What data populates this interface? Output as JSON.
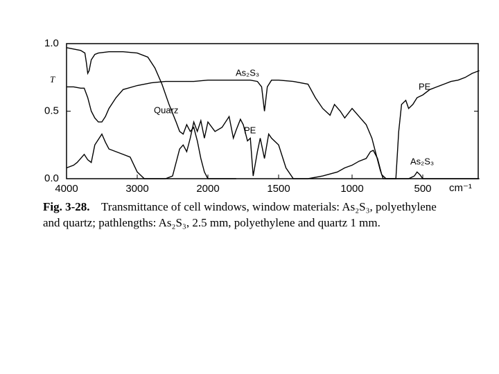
{
  "chart_data": {
    "type": "line",
    "ylabel": "T",
    "xlabel": "cm⁻¹",
    "caption_label": "Fig. 3-28.",
    "caption_line1": "Transmittance of cell windows, window materials: As₂S₃, polyethylene",
    "caption_line2": "and quartz; pathlengths: As₂S₃, 2.5 mm, polyethylene and quartz 1 mm.",
    "xlim": [
      4000,
      100
    ],
    "xticks": [
      4000,
      3000,
      2000,
      1500,
      1000,
      500
    ],
    "ylim": [
      0,
      1.0
    ],
    "yticks": [
      {
        "value": 0,
        "label": "0.0"
      },
      {
        "value": 0.5,
        "label": "0.5"
      },
      {
        "value": 1.0,
        "label": "1.0"
      }
    ],
    "series": [
      {
        "name": "As₂S₃",
        "color": "#000000",
        "x": [
          4000,
          3900,
          3800,
          3750,
          3700,
          3650,
          3600,
          3550,
          3500,
          3450,
          3400,
          3300,
          3200,
          3000,
          2800,
          2600,
          2400,
          2200,
          2000,
          1800,
          1700,
          1650,
          1620,
          1600,
          1580,
          1550,
          1500,
          1400,
          1300,
          1250,
          1200,
          1150,
          1120,
          1080,
          1050,
          1000,
          950,
          900,
          860,
          830,
          800,
          780,
          750,
          700,
          600,
          560,
          540,
          520,
          500,
          450,
          300,
          100
        ],
        "values": [
          0.68,
          0.68,
          0.67,
          0.67,
          0.6,
          0.5,
          0.45,
          0.42,
          0.42,
          0.46,
          0.52,
          0.6,
          0.66,
          0.69,
          0.71,
          0.72,
          0.72,
          0.72,
          0.73,
          0.73,
          0.73,
          0.72,
          0.68,
          0.5,
          0.68,
          0.73,
          0.73,
          0.72,
          0.7,
          0.6,
          0.52,
          0.47,
          0.55,
          0.5,
          0.45,
          0.52,
          0.46,
          0.4,
          0.3,
          0.18,
          0.06,
          0.0,
          0.0,
          0.0,
          0.0,
          0.02,
          0.05,
          0.03,
          0.0,
          0.0,
          0.0,
          0.0
        ]
      },
      {
        "name": "PE",
        "color": "#000000",
        "x": [
          4000,
          3900,
          3850,
          3800,
          3750,
          3700,
          3650,
          3600,
          3500,
          3450,
          3400,
          3300,
          3200,
          3100,
          3000,
          2900,
          2800,
          2600,
          2500,
          2400,
          2350,
          2300,
          2250,
          2200,
          2150,
          2100,
          2050,
          2000,
          1950,
          1900,
          1850,
          1820,
          1800,
          1770,
          1750,
          1720,
          1700,
          1680,
          1650,
          1630,
          1600,
          1570,
          1550,
          1500,
          1450,
          1400,
          1300,
          1200,
          1100,
          1050,
          1000,
          950,
          900,
          870,
          850,
          820,
          790,
          760,
          720,
          690,
          670,
          650,
          620,
          600,
          570,
          540,
          500,
          450,
          400,
          350,
          300,
          250,
          200,
          150,
          100
        ],
        "values": [
          0.08,
          0.1,
          0.12,
          0.15,
          0.18,
          0.14,
          0.12,
          0.25,
          0.33,
          0.27,
          0.22,
          0.2,
          0.18,
          0.16,
          0.05,
          0.0,
          0.0,
          0.0,
          0.02,
          0.22,
          0.25,
          0.2,
          0.3,
          0.42,
          0.35,
          0.43,
          0.3,
          0.42,
          0.35,
          0.38,
          0.46,
          0.3,
          0.36,
          0.44,
          0.4,
          0.28,
          0.3,
          0.02,
          0.2,
          0.3,
          0.15,
          0.33,
          0.3,
          0.25,
          0.08,
          0.0,
          0.0,
          0.02,
          0.05,
          0.08,
          0.1,
          0.13,
          0.15,
          0.2,
          0.21,
          0.15,
          0.03,
          0.0,
          0.0,
          0.0,
          0.35,
          0.55,
          0.58,
          0.52,
          0.55,
          0.6,
          0.62,
          0.66,
          0.68,
          0.7,
          0.72,
          0.73,
          0.75,
          0.78,
          0.8
        ]
      },
      {
        "name": "Quarz",
        "color": "#000000",
        "x": [
          4000,
          3900,
          3800,
          3740,
          3720,
          3700,
          3680,
          3650,
          3600,
          3550,
          3400,
          3200,
          3000,
          2850,
          2750,
          2650,
          2550,
          2450,
          2400,
          2350,
          2300,
          2250,
          2200,
          2150,
          2100,
          2050,
          2000,
          1900,
          1800
        ],
        "values": [
          0.97,
          0.96,
          0.95,
          0.93,
          0.86,
          0.78,
          0.8,
          0.88,
          0.92,
          0.93,
          0.94,
          0.94,
          0.93,
          0.9,
          0.82,
          0.7,
          0.55,
          0.42,
          0.35,
          0.33,
          0.4,
          0.35,
          0.38,
          0.28,
          0.15,
          0.05,
          0.0,
          0.0,
          0.0
        ]
      }
    ]
  }
}
